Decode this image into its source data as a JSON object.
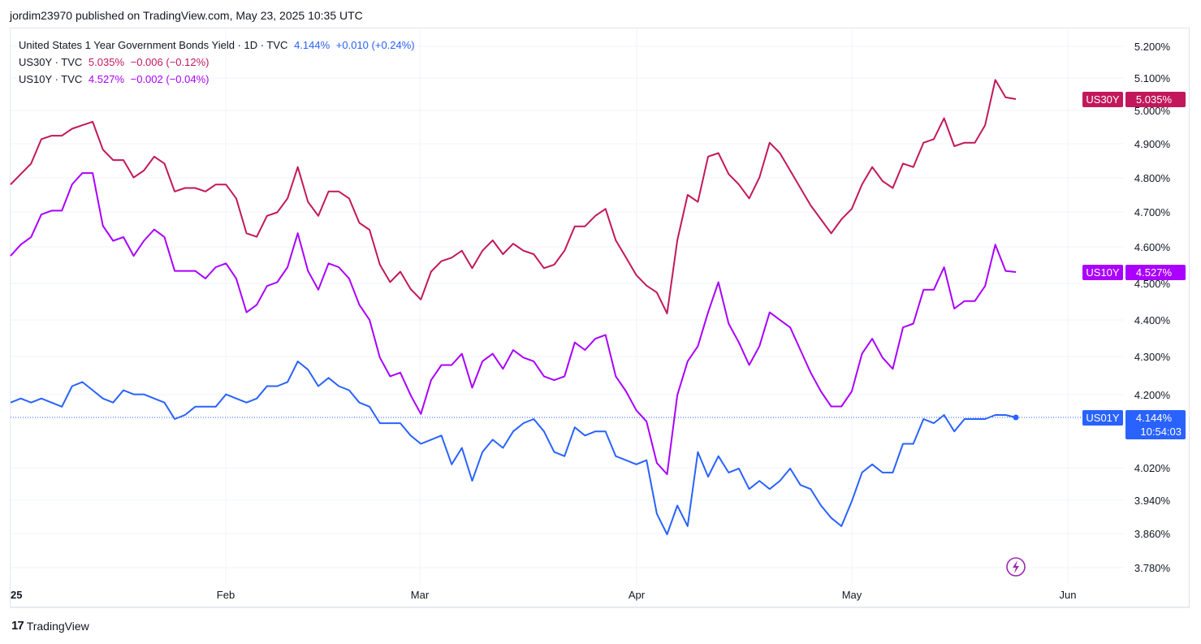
{
  "header": {
    "text": "jordim23970 published on TradingView.com, May 23, 2025 10:35 UTC"
  },
  "legend": {
    "rows": [
      {
        "name": "United States 1 Year Government Bonds Yield · 1D · TVC",
        "value": "4.144%",
        "change": "+0.010 (+0.24%)",
        "color": "#2962ff"
      },
      {
        "name": "US30Y · TVC",
        "value": "5.035%",
        "change": "−0.006 (−0.12%)",
        "color": "#c2185b"
      },
      {
        "name": "US10Y · TVC",
        "value": "4.527%",
        "change": "−0.002 (−0.04%)",
        "color": "#aa00ff"
      }
    ]
  },
  "footer": {
    "brand": "TradingView",
    "logo": "17"
  },
  "icons": {
    "lightning": "lightning-icon"
  },
  "chart_data": {
    "type": "line",
    "ylabel": "",
    "xlabel": "",
    "y_ticks": [
      "5.200%",
      "5.100%",
      "5.000%",
      "4.900%",
      "4.800%",
      "4.700%",
      "4.600%",
      "4.500%",
      "4.400%",
      "4.300%",
      "4.200%",
      "4.020%",
      "3.940%",
      "3.860%",
      "3.780%"
    ],
    "x_ticks": [
      "25",
      "Feb",
      "Mar",
      "Apr",
      "May",
      "Jun"
    ],
    "ylim_left_scale": [
      3.78,
      5.2
    ],
    "grid": true,
    "series": [
      {
        "name": "US30Y",
        "color": "#c2185b",
        "last_label": "5.035%",
        "values": [
          4.79,
          4.82,
          4.85,
          4.92,
          4.93,
          4.93,
          4.95,
          4.96,
          4.97,
          4.89,
          4.86,
          4.86,
          4.81,
          4.83,
          4.87,
          4.85,
          4.77,
          4.78,
          4.78,
          4.77,
          4.79,
          4.79,
          4.75,
          4.65,
          4.64,
          4.7,
          4.71,
          4.75,
          4.84,
          4.74,
          4.7,
          4.77,
          4.77,
          4.75,
          4.68,
          4.66,
          4.56,
          4.51,
          4.54,
          4.49,
          4.46,
          4.54,
          4.57,
          4.58,
          4.6,
          4.55,
          4.6,
          4.63,
          4.59,
          4.62,
          4.6,
          4.59,
          4.55,
          4.56,
          4.6,
          4.67,
          4.67,
          4.7,
          4.72,
          4.63,
          4.58,
          4.53,
          4.5,
          4.48,
          4.42,
          4.63,
          4.76,
          4.74,
          4.87,
          4.88,
          4.82,
          4.79,
          4.75,
          4.81,
          4.91,
          4.88,
          4.83,
          4.78,
          4.73,
          4.69,
          4.65,
          4.69,
          4.72,
          4.79,
          4.84,
          4.8,
          4.78,
          4.85,
          4.84,
          4.91,
          4.92,
          4.98,
          4.9,
          4.91,
          4.91,
          4.96,
          5.09,
          5.04,
          5.035
        ]
      },
      {
        "name": "US10Y",
        "color": "#aa00ff",
        "last_label": "4.527%",
        "values": [
          4.57,
          4.6,
          4.62,
          4.68,
          4.69,
          4.69,
          4.76,
          4.79,
          4.79,
          4.65,
          4.61,
          4.62,
          4.57,
          4.61,
          4.64,
          4.62,
          4.53,
          4.53,
          4.53,
          4.51,
          4.54,
          4.55,
          4.51,
          4.42,
          4.44,
          4.49,
          4.5,
          4.54,
          4.63,
          4.53,
          4.48,
          4.55,
          4.54,
          4.51,
          4.44,
          4.4,
          4.3,
          4.25,
          4.26,
          4.2,
          4.15,
          4.24,
          4.28,
          4.28,
          4.31,
          4.22,
          4.29,
          4.31,
          4.27,
          4.32,
          4.3,
          4.29,
          4.25,
          4.24,
          4.25,
          4.34,
          4.32,
          4.35,
          4.36,
          4.25,
          4.21,
          4.16,
          4.13,
          4.02,
          3.99,
          4.2,
          4.29,
          4.33,
          4.42,
          4.5,
          4.39,
          4.34,
          4.28,
          4.33,
          4.42,
          4.4,
          4.38,
          4.32,
          4.26,
          4.21,
          4.17,
          4.17,
          4.21,
          4.31,
          4.35,
          4.3,
          4.27,
          4.38,
          4.39,
          4.48,
          4.48,
          4.54,
          4.43,
          4.45,
          4.45,
          4.49,
          4.6,
          4.53,
          4.527
        ]
      },
      {
        "name": "US01Y",
        "color": "#2962ff",
        "last_label": "4.144%",
        "countdown": "10:54:03",
        "values": [
          4.18,
          4.19,
          4.18,
          4.19,
          4.18,
          4.17,
          4.22,
          4.23,
          4.21,
          4.19,
          4.18,
          4.21,
          4.2,
          4.2,
          4.19,
          4.18,
          4.14,
          4.15,
          4.17,
          4.17,
          4.17,
          4.2,
          4.19,
          4.18,
          4.19,
          4.22,
          4.22,
          4.23,
          4.28,
          4.26,
          4.22,
          4.24,
          4.22,
          4.21,
          4.18,
          4.17,
          4.13,
          4.13,
          4.13,
          4.1,
          4.08,
          4.09,
          4.1,
          4.03,
          4.07,
          3.99,
          4.06,
          4.09,
          4.07,
          4.11,
          4.13,
          4.14,
          4.11,
          4.06,
          4.05,
          4.12,
          4.1,
          4.11,
          4.11,
          4.05,
          4.04,
          4.03,
          4.04,
          3.91,
          3.86,
          3.93,
          3.88,
          4.06,
          4.0,
          4.05,
          4.01,
          4.02,
          3.97,
          3.99,
          3.97,
          3.99,
          4.02,
          3.98,
          3.97,
          3.93,
          3.9,
          3.88,
          3.94,
          4.01,
          4.03,
          4.01,
          4.01,
          4.08,
          4.08,
          4.14,
          4.13,
          4.15,
          4.11,
          4.14,
          4.14,
          4.14,
          4.15,
          4.15,
          4.144
        ]
      }
    ]
  }
}
